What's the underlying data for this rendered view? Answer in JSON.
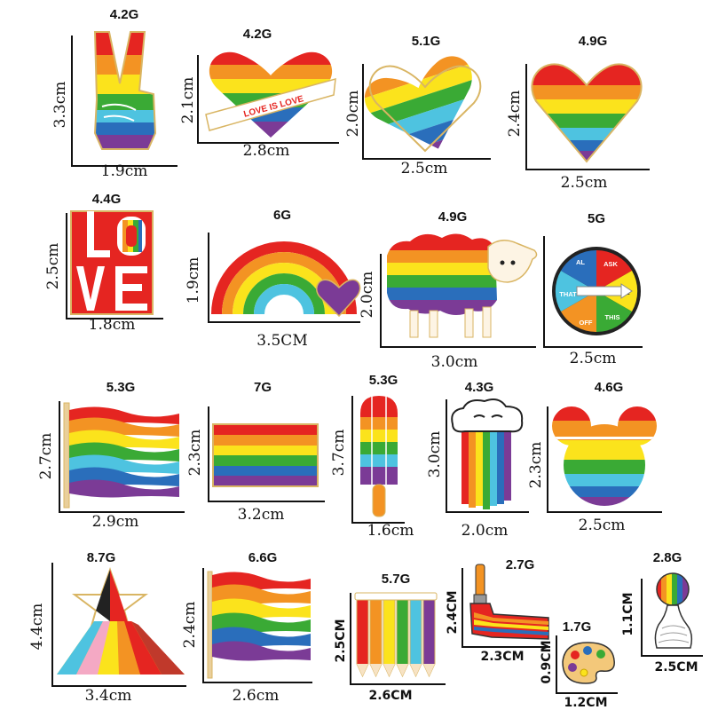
{
  "palette": {
    "red": "#e52521",
    "orange": "#f39323",
    "yellow": "#fbe31c",
    "green": "#3aaa35",
    "blue": "#2a6ebb",
    "purple": "#7b3b96",
    "cyan": "#4ec3e0",
    "gold": "#d9b563"
  },
  "pins": [
    {
      "name": "peace-hand",
      "weight": "4.2G",
      "width": "1.9cm",
      "height": "3.3cm"
    },
    {
      "name": "love-is-love-heart",
      "weight": "4.2G",
      "width": "2.8cm",
      "height": "2.1cm",
      "banner_text": "LOVE IS LOVE"
    },
    {
      "name": "diagonal-heart",
      "weight": "5.1G",
      "width": "2.5cm",
      "height": "2.0cm"
    },
    {
      "name": "striped-heart",
      "weight": "4.9G",
      "width": "2.5cm",
      "height": "2.4cm"
    },
    {
      "name": "love-block",
      "weight": "4.4G",
      "width": "1.8cm",
      "height": "2.5cm"
    },
    {
      "name": "rainbow-heart",
      "weight": "6G",
      "width": "3.5CM",
      "height": "1.9cm"
    },
    {
      "name": "rainbow-sheep",
      "weight": "4.9G",
      "width": "3.0cm",
      "height": "2.0cm"
    },
    {
      "name": "spinner",
      "weight": "5G",
      "width": "2.5cm",
      "height": "",
      "wheel_words": [
        "ASK",
        "ME",
        "THIS",
        "OFF",
        "THAT",
        "AL"
      ]
    },
    {
      "name": "wavy-flag",
      "weight": "5.3G",
      "width": "2.9cm",
      "height": "2.7cm"
    },
    {
      "name": "rect-flag",
      "weight": "7G",
      "width": "3.2cm",
      "height": "2.3cm"
    },
    {
      "name": "popsicle",
      "weight": "5.3G",
      "width": "1.6cm",
      "height": "3.7cm"
    },
    {
      "name": "cloud-rainbow",
      "weight": "4.3G",
      "width": "2.0cm",
      "height": "3.0cm"
    },
    {
      "name": "mouse-ears",
      "weight": "4.6G",
      "width": "2.5cm",
      "height": "2.3cm"
    },
    {
      "name": "star-dress",
      "weight": "8.7G",
      "width": "3.4cm",
      "height": "4.4cm"
    },
    {
      "name": "pole-flag",
      "weight": "6.6G",
      "width": "2.6cm",
      "height": "2.4cm"
    },
    {
      "name": "pencils",
      "weight": "5.7G",
      "width": "2.6CM",
      "height": "2.5CM"
    },
    {
      "name": "paint-brush",
      "weight": "2.7G",
      "width": "2.3CM",
      "height": "2.4CM"
    },
    {
      "name": "palette",
      "weight": "1.7G",
      "width": "1.2CM",
      "height": "0.9CM"
    },
    {
      "name": "balloon",
      "weight": "2.8G",
      "width": "2.5CM",
      "height": "1.1CM"
    }
  ]
}
